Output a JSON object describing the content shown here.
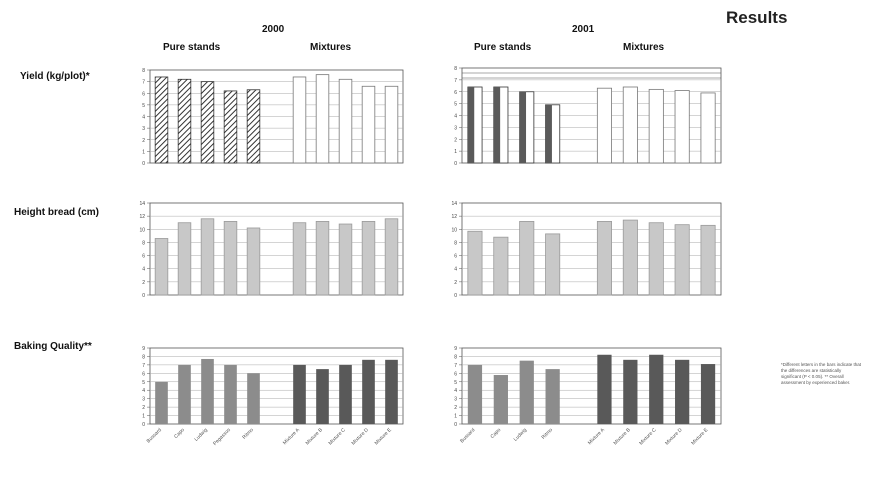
{
  "page": {
    "title": "Results"
  },
  "headers": {
    "y2000": "2000",
    "y2001": "2001",
    "pure_2000": "Pure stands",
    "mix_2000": "Mixtures",
    "pure_2001": "Pure stands",
    "mix_2001": "Mixtures"
  },
  "rows": {
    "yield": "Yield (kg/plot)*",
    "height": "Height bread (cm)",
    "baking": "Baking Quality**"
  },
  "footnote": "*Different letters in the bars indicate that the differences are statistically significant (P < 0.05). ** Overall assessment by experienced baker.",
  "colors": {
    "pure": "#8c8c8c",
    "mix": "#595959",
    "light": "#c8c8c8",
    "frame": "#555555"
  },
  "x_labels": {
    "c2000": [
      "Bussard",
      "Capo",
      "Ludwig",
      "Pegassos",
      "Ritmo",
      "Mixture A",
      "Mixture B",
      "Mixture C",
      "Mixture D",
      "Mixture E"
    ],
    "c2001": [
      "Bussard",
      "Capo",
      "Ludwig",
      "Ritmo",
      "Mixture A",
      "Mixture B",
      "Mixture C",
      "Mixture D",
      "Mixture E"
    ]
  },
  "chart_data": [
    {
      "id": "yield-2000",
      "type": "bar",
      "ylim": [
        0,
        8
      ],
      "categories": [
        "Bussard",
        "Capo",
        "Ludwig",
        "Pegassos",
        "Ritmo",
        "Mixture A",
        "Mixture B",
        "Mixture C",
        "Mixture D",
        "Mixture E"
      ],
      "values": [
        7.4,
        7.2,
        7.0,
        6.2,
        6.3,
        7.4,
        7.6,
        7.2,
        6.6,
        6.6
      ],
      "styles": [
        "pure-hatch",
        "pure-hatch",
        "pure-hatch",
        "pure-hatch",
        "pure-hatch",
        "mix-white",
        "mix-white",
        "mix-white",
        "mix-white",
        "mix-white"
      ]
    },
    {
      "id": "yield-2001",
      "type": "bar",
      "ylim": [
        0,
        8
      ],
      "categories": [
        "Bussard",
        "Capo",
        "Ludwig",
        "Ritmo",
        "Mixture A",
        "Mixture B",
        "Mixture C",
        "Mixture D",
        "Mixture E"
      ],
      "values": [
        6.4,
        6.4,
        6.0,
        4.9,
        6.3,
        6.4,
        6.2,
        6.1,
        5.9
      ],
      "styles": [
        "pure-dark",
        "pure-dark",
        "pure-dark",
        "pure-dark",
        "mix-white",
        "mix-white",
        "mix-white",
        "mix-white",
        "mix-white"
      ]
    },
    {
      "id": "height-2000",
      "type": "bar",
      "ylim": [
        0,
        14
      ],
      "categories": [
        "Bussard",
        "Capo",
        "Ludwig",
        "Pegassos",
        "Ritmo",
        "Mixture A",
        "Mixture B",
        "Mixture C",
        "Mixture D",
        "Mixture E"
      ],
      "values": [
        8.6,
        11.0,
        11.6,
        11.2,
        10.2,
        11.0,
        11.2,
        10.8,
        11.2,
        11.6
      ],
      "styles": [
        "light",
        "light",
        "light",
        "light",
        "light",
        "light",
        "light",
        "light",
        "light",
        "light"
      ]
    },
    {
      "id": "height-2001",
      "type": "bar",
      "ylim": [
        0,
        14
      ],
      "categories": [
        "Bussard",
        "Capo",
        "Ludwig",
        "Ritmo",
        "Mixture A",
        "Mixture B",
        "Mixture C",
        "Mixture D",
        "Mixture E"
      ],
      "values": [
        9.7,
        8.8,
        11.2,
        9.3,
        11.2,
        11.4,
        11.0,
        10.7,
        10.6
      ],
      "styles": [
        "light",
        "light",
        "light",
        "light",
        "light",
        "light",
        "light",
        "light",
        "light"
      ]
    },
    {
      "id": "baking-2000",
      "type": "bar",
      "ylim": [
        0,
        9
      ],
      "categories": [
        "Bussard",
        "Capo",
        "Ludwig",
        "Pegassos",
        "Ritmo",
        "Mixture A",
        "Mixture B",
        "Mixture C",
        "Mixture D",
        "Mixture E"
      ],
      "values": [
        5.0,
        7.0,
        7.7,
        7.0,
        6.0,
        7.0,
        6.5,
        7.0,
        7.6,
        7.6
      ],
      "styles": [
        "pure",
        "pure",
        "pure",
        "pure",
        "pure",
        "mix",
        "mix",
        "mix",
        "mix",
        "mix"
      ]
    },
    {
      "id": "baking-2001",
      "type": "bar",
      "ylim": [
        0,
        9
      ],
      "categories": [
        "Bussard",
        "Capo",
        "Ludwig",
        "Ritmo",
        "Mixture A",
        "Mixture B",
        "Mixture C",
        "Mixture D",
        "Mixture E"
      ],
      "values": [
        7.0,
        5.8,
        7.5,
        6.5,
        8.2,
        7.6,
        8.2,
        7.6,
        7.1
      ],
      "styles": [
        "pure",
        "pure",
        "pure",
        "pure",
        "mix",
        "mix",
        "mix",
        "mix",
        "mix"
      ]
    }
  ]
}
